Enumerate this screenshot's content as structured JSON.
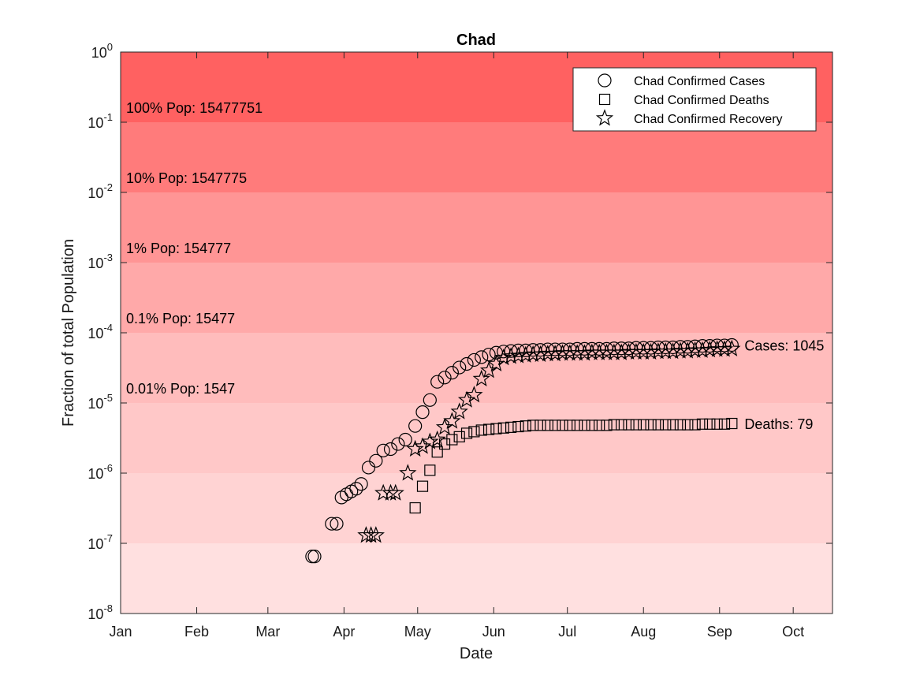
{
  "chart_data": {
    "type": "scatter",
    "title": "Chad",
    "xlabel": "Date",
    "ylabel": "Fraction of total Population",
    "yscale": "log",
    "ylim": [
      1e-08,
      1
    ],
    "xlim": [
      "2020-01-01",
      "2020-10-17"
    ],
    "x_ticks": [
      {
        "date": "2020-01-01",
        "label": "Jan"
      },
      {
        "date": "2020-02-01",
        "label": "Feb"
      },
      {
        "date": "2020-03-01",
        "label": "Mar"
      },
      {
        "date": "2020-04-01",
        "label": "Apr"
      },
      {
        "date": "2020-05-01",
        "label": "May"
      },
      {
        "date": "2020-06-01",
        "label": "Jun"
      },
      {
        "date": "2020-07-01",
        "label": "Jul"
      },
      {
        "date": "2020-08-01",
        "label": "Aug"
      },
      {
        "date": "2020-09-01",
        "label": "Sep"
      },
      {
        "date": "2020-10-01",
        "label": "Oct"
      }
    ],
    "y_ticks": [
      {
        "exp": "0"
      },
      {
        "exp": "-1"
      },
      {
        "exp": "-2"
      },
      {
        "exp": "-3"
      },
      {
        "exp": "-4"
      },
      {
        "exp": "-5"
      },
      {
        "exp": "-6"
      },
      {
        "exp": "-7"
      },
      {
        "exp": "-8"
      }
    ],
    "y_tick_base": "10",
    "bands": [
      {
        "from": 0.1,
        "to": 1,
        "color": "#ff6161",
        "label": "100% Pop: 15477751"
      },
      {
        "from": 0.01,
        "to": 0.1,
        "color": "#ff7b7b",
        "label": "10% Pop: 1547775"
      },
      {
        "from": 0.001,
        "to": 0.01,
        "color": "#ff9595",
        "label": "1% Pop: 154777"
      },
      {
        "from": 0.0001,
        "to": 0.001,
        "color": "#ffa9a9",
        "label": "0.1% Pop: 15477"
      },
      {
        "from": 1e-05,
        "to": 0.0001,
        "color": "#ffbcbc",
        "label": "0.01% Pop: 1547"
      },
      {
        "from": 1e-06,
        "to": 1e-05,
        "color": "#ffc8c8",
        "label": ""
      },
      {
        "from": 1e-07,
        "to": 1e-06,
        "color": "#ffd3d3",
        "label": ""
      },
      {
        "from": 1e-08,
        "to": 1e-07,
        "color": "#ffe0e0",
        "label": ""
      }
    ],
    "series": [
      {
        "name": "Chad Confirmed Cases",
        "marker": "circle",
        "points": [
          [
            "2020-03-19",
            6.5e-08
          ],
          [
            "2020-03-20",
            6.5e-08
          ],
          [
            "2020-03-27",
            1.9e-07
          ],
          [
            "2020-03-29",
            1.9e-07
          ],
          [
            "2020-03-31",
            4.5e-07
          ],
          [
            "2020-04-02",
            5e-07
          ],
          [
            "2020-04-04",
            5.5e-07
          ],
          [
            "2020-04-06",
            6e-07
          ],
          [
            "2020-04-08",
            7e-07
          ],
          [
            "2020-04-11",
            1.2e-06
          ],
          [
            "2020-04-14",
            1.5e-06
          ],
          [
            "2020-04-17",
            2.1e-06
          ],
          [
            "2020-04-20",
            2.2e-06
          ],
          [
            "2020-04-23",
            2.6e-06
          ],
          [
            "2020-04-26",
            3e-06
          ],
          [
            "2020-04-30",
            4.7e-06
          ],
          [
            "2020-05-03",
            7.4e-06
          ],
          [
            "2020-05-06",
            1.1e-05
          ],
          [
            "2020-05-09",
            2e-05
          ],
          [
            "2020-05-12",
            2.3e-05
          ],
          [
            "2020-05-15",
            2.7e-05
          ],
          [
            "2020-05-18",
            3.2e-05
          ],
          [
            "2020-05-21",
            3.6e-05
          ],
          [
            "2020-05-24",
            4.1e-05
          ],
          [
            "2020-05-27",
            4.5e-05
          ],
          [
            "2020-05-30",
            4.9e-05
          ],
          [
            "2020-06-02",
            5.2e-05
          ],
          [
            "2020-06-05",
            5.4e-05
          ],
          [
            "2020-06-08",
            5.5e-05
          ],
          [
            "2020-06-11",
            5.6e-05
          ],
          [
            "2020-06-14",
            5.6e-05
          ],
          [
            "2020-06-17",
            5.7e-05
          ],
          [
            "2020-06-20",
            5.7e-05
          ],
          [
            "2020-06-23",
            5.8e-05
          ],
          [
            "2020-06-26",
            5.8e-05
          ],
          [
            "2020-06-29",
            5.8e-05
          ],
          [
            "2020-07-02",
            5.8e-05
          ],
          [
            "2020-07-05",
            5.9e-05
          ],
          [
            "2020-07-08",
            5.9e-05
          ],
          [
            "2020-07-11",
            5.9e-05
          ],
          [
            "2020-07-14",
            5.9e-05
          ],
          [
            "2020-07-17",
            5.9e-05
          ],
          [
            "2020-07-20",
            6e-05
          ],
          [
            "2020-07-23",
            6e-05
          ],
          [
            "2020-07-26",
            6e-05
          ],
          [
            "2020-07-29",
            6.1e-05
          ],
          [
            "2020-08-01",
            6.1e-05
          ],
          [
            "2020-08-04",
            6.1e-05
          ],
          [
            "2020-08-07",
            6.2e-05
          ],
          [
            "2020-08-10",
            6.2e-05
          ],
          [
            "2020-08-13",
            6.2e-05
          ],
          [
            "2020-08-16",
            6.3e-05
          ],
          [
            "2020-08-19",
            6.3e-05
          ],
          [
            "2020-08-22",
            6.4e-05
          ],
          [
            "2020-08-25",
            6.5e-05
          ],
          [
            "2020-08-28",
            6.5e-05
          ],
          [
            "2020-08-31",
            6.6e-05
          ],
          [
            "2020-09-03",
            6.6e-05
          ],
          [
            "2020-09-06",
            6.7e-05
          ]
        ]
      },
      {
        "name": "Chad Confirmed Deaths",
        "marker": "square",
        "points": [
          [
            "2020-04-30",
            3.2e-07
          ],
          [
            "2020-05-03",
            6.5e-07
          ],
          [
            "2020-05-06",
            1.1e-06
          ],
          [
            "2020-05-09",
            2e-06
          ],
          [
            "2020-05-12",
            2.6e-06
          ],
          [
            "2020-05-15",
            3e-06
          ],
          [
            "2020-05-18",
            3.3e-06
          ],
          [
            "2020-05-21",
            3.7e-06
          ],
          [
            "2020-05-24",
            3.9e-06
          ],
          [
            "2020-05-27",
            4.1e-06
          ],
          [
            "2020-05-30",
            4.2e-06
          ],
          [
            "2020-06-02",
            4.3e-06
          ],
          [
            "2020-06-05",
            4.4e-06
          ],
          [
            "2020-06-08",
            4.5e-06
          ],
          [
            "2020-06-11",
            4.6e-06
          ],
          [
            "2020-06-14",
            4.7e-06
          ],
          [
            "2020-06-17",
            4.8e-06
          ],
          [
            "2020-06-20",
            4.8e-06
          ],
          [
            "2020-06-23",
            4.8e-06
          ],
          [
            "2020-06-26",
            4.8e-06
          ],
          [
            "2020-06-29",
            4.8e-06
          ],
          [
            "2020-07-02",
            4.8e-06
          ],
          [
            "2020-07-05",
            4.8e-06
          ],
          [
            "2020-07-08",
            4.8e-06
          ],
          [
            "2020-07-11",
            4.8e-06
          ],
          [
            "2020-07-14",
            4.8e-06
          ],
          [
            "2020-07-17",
            4.8e-06
          ],
          [
            "2020-07-20",
            4.9e-06
          ],
          [
            "2020-07-23",
            4.9e-06
          ],
          [
            "2020-07-26",
            4.9e-06
          ],
          [
            "2020-07-29",
            4.9e-06
          ],
          [
            "2020-08-01",
            4.9e-06
          ],
          [
            "2020-08-04",
            4.9e-06
          ],
          [
            "2020-08-07",
            4.9e-06
          ],
          [
            "2020-08-10",
            4.9e-06
          ],
          [
            "2020-08-13",
            4.9e-06
          ],
          [
            "2020-08-16",
            4.9e-06
          ],
          [
            "2020-08-19",
            4.9e-06
          ],
          [
            "2020-08-22",
            4.9e-06
          ],
          [
            "2020-08-25",
            5e-06
          ],
          [
            "2020-08-28",
            5e-06
          ],
          [
            "2020-08-31",
            5e-06
          ],
          [
            "2020-09-03",
            5e-06
          ],
          [
            "2020-09-06",
            5.1e-06
          ]
        ]
      },
      {
        "name": "Chad Confirmed Recovery",
        "marker": "star",
        "points": [
          [
            "2020-04-10",
            1.3e-07
          ],
          [
            "2020-04-12",
            1.3e-07
          ],
          [
            "2020-04-14",
            1.3e-07
          ],
          [
            "2020-04-17",
            5.2e-07
          ],
          [
            "2020-04-20",
            5.2e-07
          ],
          [
            "2020-04-22",
            5.2e-07
          ],
          [
            "2020-04-27",
            1e-06
          ],
          [
            "2020-04-30",
            2.2e-06
          ],
          [
            "2020-05-03",
            2.4e-06
          ],
          [
            "2020-05-06",
            2.8e-06
          ],
          [
            "2020-05-09",
            3e-06
          ],
          [
            "2020-05-12",
            4.5e-06
          ],
          [
            "2020-05-15",
            5.5e-06
          ],
          [
            "2020-05-18",
            7.5e-06
          ],
          [
            "2020-05-21",
            1.1e-05
          ],
          [
            "2020-05-24",
            1.3e-05
          ],
          [
            "2020-05-27",
            2.2e-05
          ],
          [
            "2020-05-30",
            2.9e-05
          ],
          [
            "2020-06-02",
            3.6e-05
          ],
          [
            "2020-06-05",
            4.4e-05
          ],
          [
            "2020-06-08",
            4.6e-05
          ],
          [
            "2020-06-11",
            4.7e-05
          ],
          [
            "2020-06-14",
            4.8e-05
          ],
          [
            "2020-06-17",
            4.9e-05
          ],
          [
            "2020-06-20",
            4.9e-05
          ],
          [
            "2020-06-23",
            5e-05
          ],
          [
            "2020-06-26",
            5e-05
          ],
          [
            "2020-06-29",
            5.1e-05
          ],
          [
            "2020-07-02",
            5.1e-05
          ],
          [
            "2020-07-05",
            5.1e-05
          ],
          [
            "2020-07-08",
            5.1e-05
          ],
          [
            "2020-07-11",
            5.2e-05
          ],
          [
            "2020-07-14",
            5.2e-05
          ],
          [
            "2020-07-17",
            5.2e-05
          ],
          [
            "2020-07-20",
            5.2e-05
          ],
          [
            "2020-07-23",
            5.2e-05
          ],
          [
            "2020-07-26",
            5.3e-05
          ],
          [
            "2020-07-29",
            5.3e-05
          ],
          [
            "2020-08-01",
            5.3e-05
          ],
          [
            "2020-08-04",
            5.3e-05
          ],
          [
            "2020-08-07",
            5.4e-05
          ],
          [
            "2020-08-10",
            5.4e-05
          ],
          [
            "2020-08-13",
            5.4e-05
          ],
          [
            "2020-08-16",
            5.5e-05
          ],
          [
            "2020-08-19",
            5.5e-05
          ],
          [
            "2020-08-22",
            5.6e-05
          ],
          [
            "2020-08-25",
            5.6e-05
          ],
          [
            "2020-08-28",
            5.7e-05
          ],
          [
            "2020-08-31",
            5.8e-05
          ],
          [
            "2020-09-03",
            5.8e-05
          ],
          [
            "2020-09-06",
            5.9e-05
          ]
        ]
      }
    ],
    "end_labels": [
      {
        "text": "Cases: 1045",
        "date": "2020-09-06",
        "value": 6.7e-05
      },
      {
        "text": "Deaths: 79",
        "date": "2020-09-06",
        "value": 5.1e-06
      }
    ],
    "legend": {
      "position": "top-right"
    },
    "grid": false
  }
}
